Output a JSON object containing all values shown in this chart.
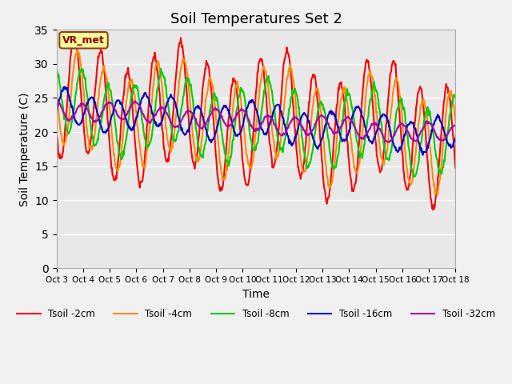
{
  "title": "Soil Temperatures Set 2",
  "xlabel": "Time",
  "ylabel": "Soil Temperature (C)",
  "ylim": [
    0,
    35
  ],
  "yticks": [
    0,
    5,
    10,
    15,
    20,
    25,
    30,
    35
  ],
  "fig_bg_color": "#f0f0f0",
  "plot_bg_color": "#e8e8e8",
  "legend_label": "VR_met",
  "series_colors": {
    "Tsoil -2cm": "#ff0000",
    "Tsoil -4cm": "#ff8c00",
    "Tsoil -8cm": "#00cc00",
    "Tsoil -16cm": "#0000cc",
    "Tsoil -32cm": "#aa00aa"
  },
  "xticklabels": [
    "Oct 3",
    "Oct 4",
    "Oct 5",
    "Oct 6",
    "Oct 7",
    "Oct 8",
    "Oct 9",
    "Oct 10",
    "Oct 11",
    "Oct 12",
    "Oct 13",
    "Oct 14",
    "Oct 15",
    "Oct 16",
    "Oct 17",
    "Oct 18"
  ],
  "n_days": 15,
  "pts_per_day": 48,
  "linewidth": 1.5
}
